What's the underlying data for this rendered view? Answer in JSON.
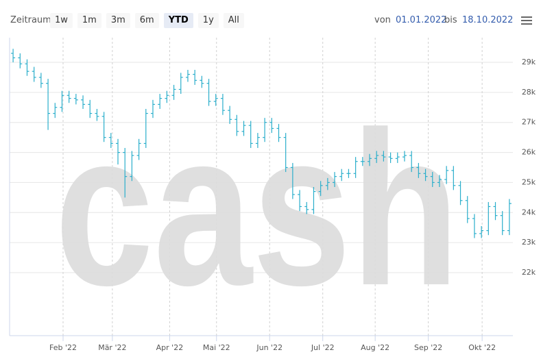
{
  "toolbar": {
    "range_label": "Zeitraum",
    "buttons": [
      "1w",
      "1m",
      "3m",
      "6m",
      "YTD",
      "1y",
      "All"
    ],
    "selected": "YTD",
    "from_label": "von",
    "from": "01.01.2022",
    "to_label": "bis",
    "to": "18.10.2022"
  },
  "chart_data": {
    "type": "ohlc",
    "watermark": "cash",
    "color": "#2aaecb",
    "open": [
      29300,
      29150,
      28950,
      28700,
      28500,
      28300,
      27300,
      27500,
      27900,
      27800,
      27750,
      27600,
      27300,
      27200,
      26500,
      26300,
      26000,
      25200,
      25900,
      26300,
      27300,
      27600,
      27800,
      27900,
      28100,
      28500,
      28600,
      28400,
      28300,
      27700,
      27800,
      27400,
      27100,
      26700,
      26900,
      26300,
      26500,
      27000,
      26800,
      26500,
      25500,
      24600,
      24200,
      24100,
      24700,
      24900,
      25000,
      25200,
      25300,
      25300,
      25700,
      25700,
      25800,
      25900,
      25850,
      25800,
      25850,
      25900,
      25500,
      25300,
      25200,
      25000,
      25100,
      25400,
      24900,
      24400,
      23800,
      23300,
      23400,
      24200,
      23900,
      23400
    ],
    "high": [
      29450,
      29300,
      29100,
      28850,
      28650,
      28450,
      27650,
      28050,
      28050,
      27950,
      27900,
      27750,
      27450,
      27350,
      26650,
      26450,
      26150,
      26050,
      26450,
      27450,
      27750,
      27950,
      28050,
      28250,
      28650,
      28750,
      28750,
      28550,
      28450,
      27950,
      27950,
      27550,
      27250,
      27050,
      27050,
      26650,
      27150,
      27150,
      26950,
      26650,
      25650,
      24750,
      24350,
      24850,
      25050,
      25150,
      25350,
      25450,
      25450,
      25850,
      25850,
      25950,
      26050,
      26050,
      26000,
      26000,
      26050,
      26050,
      25650,
      25450,
      25350,
      25250,
      25550,
      25550,
      25050,
      24550,
      23950,
      23550,
      24350,
      24350,
      24050,
      24450
    ],
    "low": [
      29000,
      28800,
      28550,
      28350,
      28150,
      26750,
      27150,
      27350,
      27650,
      27600,
      27450,
      27150,
      27050,
      26350,
      26150,
      25600,
      24500,
      25050,
      25750,
      26150,
      27150,
      27450,
      27650,
      27750,
      27950,
      28350,
      28250,
      28150,
      27550,
      27550,
      27250,
      26950,
      26550,
      26550,
      26150,
      26150,
      26350,
      26650,
      26350,
      25350,
      24450,
      24050,
      23950,
      23950,
      24550,
      24750,
      24850,
      25050,
      25150,
      25150,
      25550,
      25550,
      25650,
      25700,
      25650,
      25650,
      25700,
      25350,
      25150,
      25050,
      24850,
      24850,
      24950,
      24750,
      24250,
      23650,
      23150,
      23150,
      23250,
      23750,
      23250,
      23250
    ],
    "close": [
      29150,
      28950,
      28700,
      28500,
      28300,
      27300,
      27500,
      27900,
      27800,
      27750,
      27600,
      27300,
      27200,
      26500,
      26300,
      26000,
      25200,
      25900,
      26300,
      27300,
      27600,
      27800,
      27900,
      28100,
      28500,
      28600,
      28400,
      28300,
      27700,
      27800,
      27400,
      27100,
      26700,
      26900,
      26300,
      26500,
      27000,
      26800,
      26500,
      25500,
      24600,
      24200,
      24100,
      24700,
      24900,
      25000,
      25200,
      25300,
      25300,
      25700,
      25700,
      25800,
      25900,
      25850,
      25800,
      25850,
      25900,
      25500,
      25300,
      25200,
      25000,
      25100,
      25400,
      24900,
      24400,
      23800,
      23300,
      23400,
      24200,
      23900,
      23400,
      24300
    ],
    "xlim": [
      -0.5,
      71.5
    ],
    "xticks": [
      {
        "value": 7.15,
        "label": "Feb '22"
      },
      {
        "value": 14.2,
        "label": "Mär '22"
      },
      {
        "value": 22.4,
        "label": "Apr '22"
      },
      {
        "value": 29.1,
        "label": "Mai '22"
      },
      {
        "value": 36.7,
        "label": "Jun '22"
      },
      {
        "value": 44.3,
        "label": "Jul '22"
      },
      {
        "value": 51.8,
        "label": "Aug '22"
      },
      {
        "value": 59.4,
        "label": "Sep '22"
      },
      {
        "value": 67.1,
        "label": "Okt '22"
      }
    ],
    "ylim": [
      19902,
      29821
    ],
    "yticks": [
      {
        "value": 22000,
        "label": "22k"
      },
      {
        "value": 23000,
        "label": "23k"
      },
      {
        "value": 24000,
        "label": "24k"
      },
      {
        "value": 25000,
        "label": "25k"
      },
      {
        "value": 26000,
        "label": "26k"
      },
      {
        "value": 27000,
        "label": "27k"
      },
      {
        "value": 28000,
        "label": "28k"
      },
      {
        "value": 29000,
        "label": "29k"
      }
    ],
    "grid": true
  }
}
